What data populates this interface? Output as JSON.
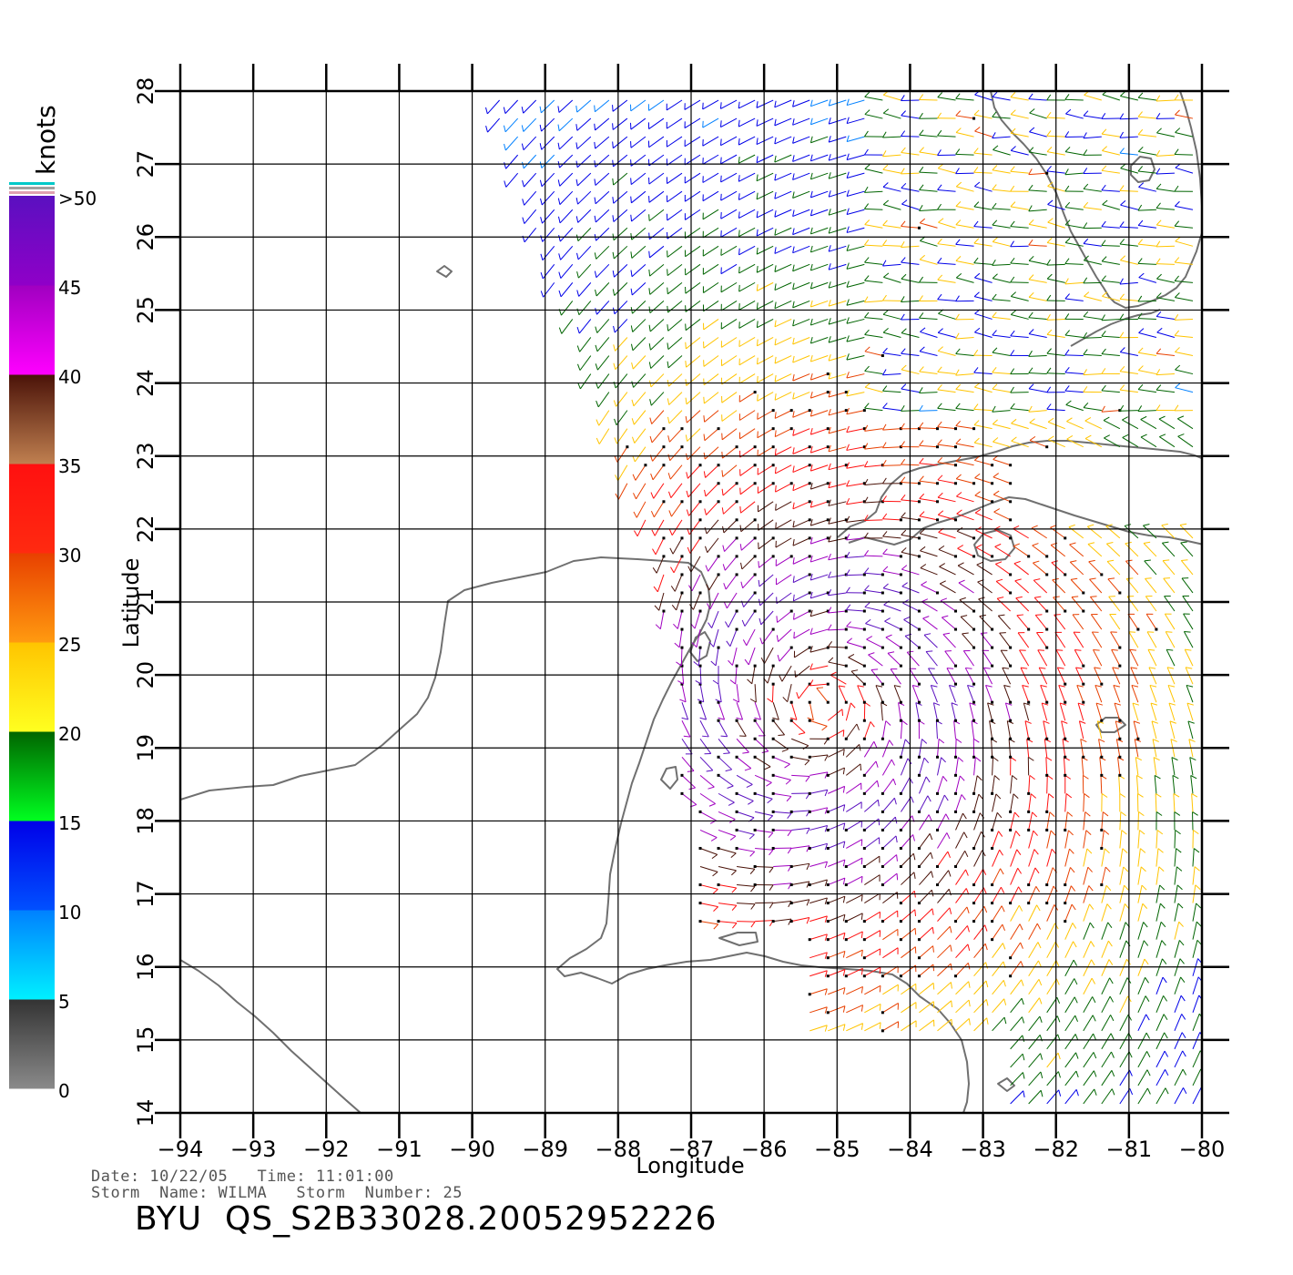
{
  "colorbar": {
    "unit_label": "knots",
    "tick_labels": [
      "0",
      "5",
      "10",
      "15",
      "20",
      "25",
      "30",
      "35",
      "40",
      "45",
      ">50"
    ],
    "bands": [
      {
        "from": 0,
        "to": 5,
        "top": "#333333",
        "bottom": "#8a8a8a"
      },
      {
        "from": 5,
        "to": 10,
        "top": "#0080ff",
        "bottom": "#00f0ff"
      },
      {
        "from": 10,
        "to": 15,
        "top": "#0000e8",
        "bottom": "#0050ff"
      },
      {
        "from": 15,
        "to": 20,
        "top": "#006400",
        "bottom": "#00ff20"
      },
      {
        "from": 20,
        "to": 25,
        "top": "#ffc400",
        "bottom": "#ffff20"
      },
      {
        "from": 25,
        "to": 30,
        "top": "#e84000",
        "bottom": "#ff9a10"
      },
      {
        "from": 30,
        "to": 35,
        "top": "#ff1010",
        "bottom": "#ff2a10"
      },
      {
        "from": 35,
        "to": 40,
        "top": "#4a1208",
        "bottom": "#c08050"
      },
      {
        "from": 40,
        "to": 45,
        "top": "#a000c0",
        "bottom": "#ff00ff"
      },
      {
        "from": 45,
        "to": 50,
        "top": "#5a10c0",
        "bottom": "#9000c8"
      }
    ]
  },
  "axes": {
    "xlabel": "Longitude",
    "ylabel": "Latitude",
    "x_ticks": [
      "-94",
      "-93",
      "-92",
      "-91",
      "-90",
      "-89",
      "-88",
      "-87",
      "-86",
      "-85",
      "-84",
      "-83",
      "-82",
      "-81",
      "-80"
    ],
    "y_ticks": [
      "14",
      "15",
      "16",
      "17",
      "18",
      "19",
      "20",
      "21",
      "22",
      "23",
      "24",
      "25",
      "26",
      "27",
      "28"
    ],
    "lon_range": [
      -94,
      -80
    ],
    "lat_range": [
      14,
      28
    ],
    "grid": true
  },
  "wind_field": {
    "storm_center_lon": -85.2,
    "storm_center_lat": 19.6,
    "grid_spacing_deg": 0.25,
    "swath_description": "QuikSCAT swath of wind vectors colored by speed in knots"
  },
  "footer": {
    "date_line": "Date: 10/22/05   Time: 11:01:00",
    "storm_line": "Storm  Name: WILMA   Storm  Number: 25",
    "product_id": "BYU  QS_S2B33028.20052952226"
  }
}
